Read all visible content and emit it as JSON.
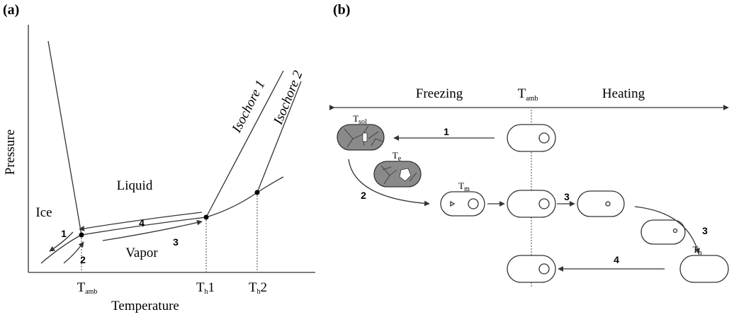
{
  "panel_a": {
    "label": "(a)",
    "y_axis": "Pressure",
    "x_axis": "Temperature",
    "regions": {
      "liquid": "Liquid",
      "ice": "Ice",
      "vapor": "Vapor"
    },
    "isochores": [
      "Isochore 1",
      "Isochore 2"
    ],
    "steps": [
      "1",
      "2",
      "3",
      "4"
    ],
    "x_ticks": [
      {
        "base": "T",
        "sub": "amb"
      },
      {
        "base": "T",
        "sub": "h",
        "suffix": "1"
      },
      {
        "base": "T",
        "sub": "h",
        "suffix": "2"
      }
    ]
  },
  "panel_b": {
    "label": "(b)",
    "freezing": "Freezing",
    "heating": "Heating",
    "t_amb": {
      "base": "T",
      "sub": "amb"
    },
    "steps": [
      "1",
      "2",
      "3",
      "3",
      "4"
    ],
    "states": {
      "t_sol": {
        "base": "T",
        "sub": "sol"
      },
      "t_e": {
        "base": "T",
        "sub": "e"
      },
      "t_m": {
        "base": "T",
        "sub": "m"
      },
      "t_h": {
        "base": "T",
        "sub": "h"
      }
    }
  }
}
